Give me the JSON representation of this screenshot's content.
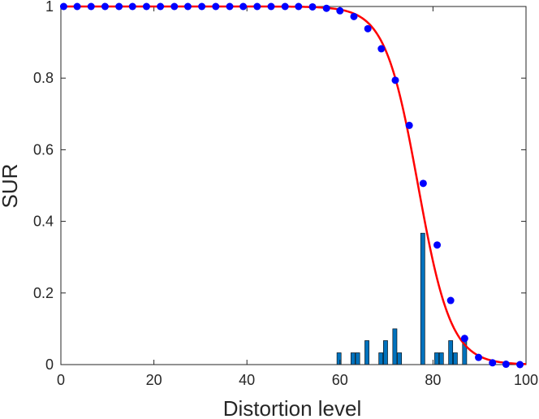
{
  "chart_data": {
    "type": "line",
    "title": "",
    "xlabel": "Distortion level",
    "ylabel": "SUR",
    "xlim": [
      0,
      100
    ],
    "ylim": [
      0,
      1
    ],
    "xticks": [
      0,
      20,
      40,
      60,
      80,
      100
    ],
    "xtick_labels": [
      "0",
      "20",
      "40",
      "60",
      "80",
      "100"
    ],
    "yticks": [
      0,
      0.2,
      0.4,
      0.6,
      0.8,
      1
    ],
    "ytick_labels": [
      "0",
      "0.2",
      "0.4",
      "0.6",
      "0.8",
      "1"
    ],
    "grid": false,
    "legend": "none",
    "series": [
      {
        "kind": "line",
        "color": "#ff0000",
        "fit": {
          "model": "logistic",
          "x0": 76.8,
          "s": 3.54
        },
        "x_range": [
          0,
          100
        ]
      },
      {
        "kind": "scatter",
        "color": "#0000ff",
        "x": [
          0.6,
          3.5,
          6.5,
          9.5,
          12.5,
          15.4,
          18.4,
          21.4,
          24.4,
          27.3,
          30.3,
          33.3,
          36.3,
          39.2,
          42.2,
          45.2,
          48.2,
          51.1,
          54.1,
          57.1,
          60.0,
          63.0,
          66.0,
          68.9,
          71.9,
          74.9,
          77.9,
          80.9,
          83.8,
          86.8,
          89.8,
          92.8,
          95.7,
          98.7
        ],
        "y": [
          1,
          1,
          1,
          1,
          1,
          1,
          1,
          1,
          1,
          1,
          1,
          1,
          1,
          1,
          1,
          1,
          1,
          1,
          0.999,
          0.995,
          0.988,
          0.972,
          0.938,
          0.882,
          0.794,
          0.668,
          0.506,
          0.334,
          0.179,
          0.073,
          0.02,
          0.005,
          0.001,
          0
        ]
      },
      {
        "kind": "bar",
        "color": "#0072bd",
        "edge_color": "#000000",
        "x": [
          59.8,
          62.8,
          63.8,
          65.8,
          68.8,
          69.8,
          71.8,
          72.8,
          77.8,
          80.8,
          81.8,
          83.8,
          84.8,
          86.8
        ],
        "values": [
          0.033,
          0.033,
          0.033,
          0.067,
          0.033,
          0.067,
          0.1,
          0.033,
          0.367,
          0.033,
          0.033,
          0.067,
          0.033,
          0.067
        ],
        "bar_width": 0.9
      }
    ]
  }
}
